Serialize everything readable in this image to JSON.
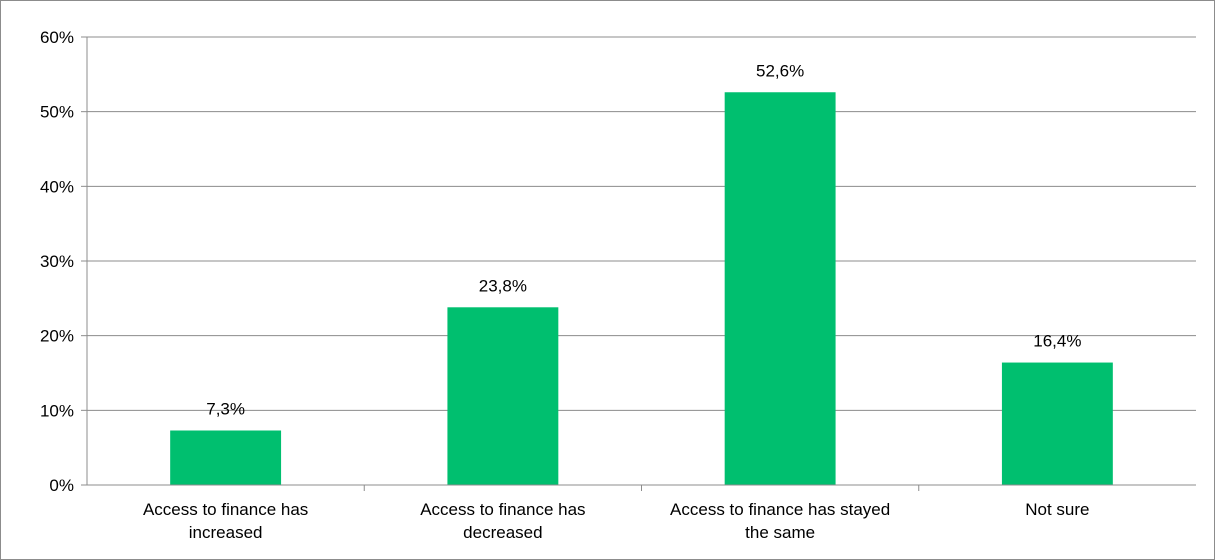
{
  "chart_data": {
    "type": "bar",
    "categories": [
      [
        "Access to finance has",
        "increased"
      ],
      [
        "Access to finance has",
        "decreased"
      ],
      [
        "Access to finance has stayed",
        "the same"
      ],
      [
        "Not sure"
      ]
    ],
    "values": [
      7.3,
      23.8,
      52.6,
      16.4
    ],
    "data_labels": [
      "7,3%",
      "23,8%",
      "52,6%",
      "16,4%"
    ],
    "y_ticks": [
      "0%",
      "10%",
      "20%",
      "30%",
      "40%",
      "50%",
      "60%"
    ],
    "ylim": [
      0,
      60
    ],
    "grid": true,
    "legend": "none",
    "colors": {
      "bar": "#00BF6F",
      "grid": "#8c8c8c",
      "axis": "#8c8c8c"
    }
  }
}
